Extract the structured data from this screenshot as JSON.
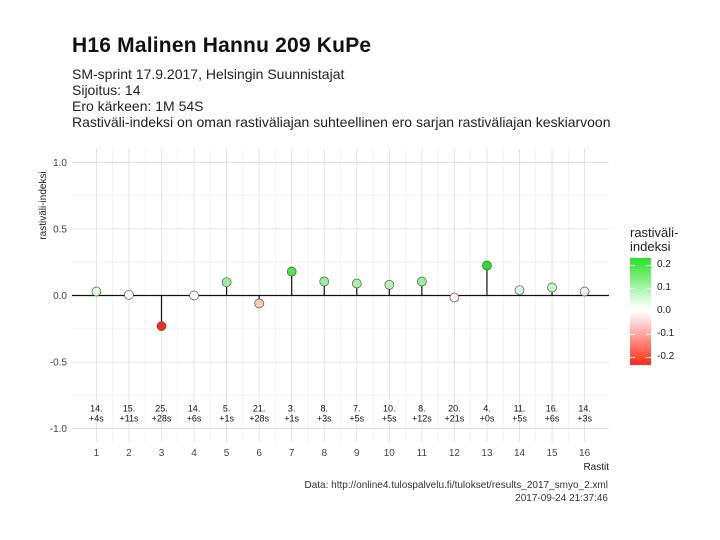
{
  "title": "H16 Malinen Hannu 209 KuPe",
  "subtitle_lines": [
    "SM-sprint 17.9.2017, Helsingin Suunnistajat",
    "Sijoitus: 14",
    "Ero kärkeen: 1M 54S",
    "Rastiväli-indeksi on oman rastiväliajan suhteellinen ero sarjan rastiväliajan keskiarvoon"
  ],
  "legend": {
    "title_line1": "rastiväli-",
    "title_line2": "indeksi",
    "labels": [
      "0.2",
      "0.1",
      "0.0",
      "-0.1",
      "-0.2"
    ],
    "high_color": "#22e322",
    "low_color": "#ff2a14"
  },
  "caption": {
    "source": "Data: http://online4.tulospalvelu.fi/tulokset/results_2017_smyo_2.xml",
    "timestamp": "2017-09-24 21:37:46"
  },
  "chart_data": {
    "type": "lollipop",
    "xlabel": "Rastit",
    "ylabel": "rastiväli-indeksi",
    "ylim": [
      -1.1,
      1.1
    ],
    "yticks": [
      -1.0,
      -0.5,
      0.0,
      0.5,
      1.0
    ],
    "ytick_labels": [
      "-1.0",
      "-0.5",
      "0.0",
      "0.5",
      "1.0"
    ],
    "x": [
      1,
      2,
      3,
      4,
      5,
      6,
      7,
      8,
      9,
      10,
      11,
      12,
      13,
      14,
      15,
      16
    ],
    "values": [
      0.03,
      0.005,
      -0.23,
      0.0,
      0.1,
      -0.06,
      0.18,
      0.105,
      0.09,
      0.08,
      0.105,
      -0.015,
      0.225,
      0.04,
      0.06,
      0.03
    ],
    "rank_labels": [
      "14.",
      "15.",
      "25.",
      "14.",
      "5.",
      "21.",
      "3.",
      "8.",
      "7.",
      "10.",
      "8.",
      "20.",
      "4.",
      "11.",
      "16.",
      "14."
    ],
    "diff_labels": [
      "+4s",
      "+11s",
      "+28s",
      "+6s",
      "+1s",
      "+28s",
      "+1s",
      "+3s",
      "+5s",
      "+5s",
      "+12s",
      "+21s",
      "+0s",
      "+5s",
      "+6s",
      "+3s"
    ],
    "grid": true,
    "legend": "right"
  }
}
